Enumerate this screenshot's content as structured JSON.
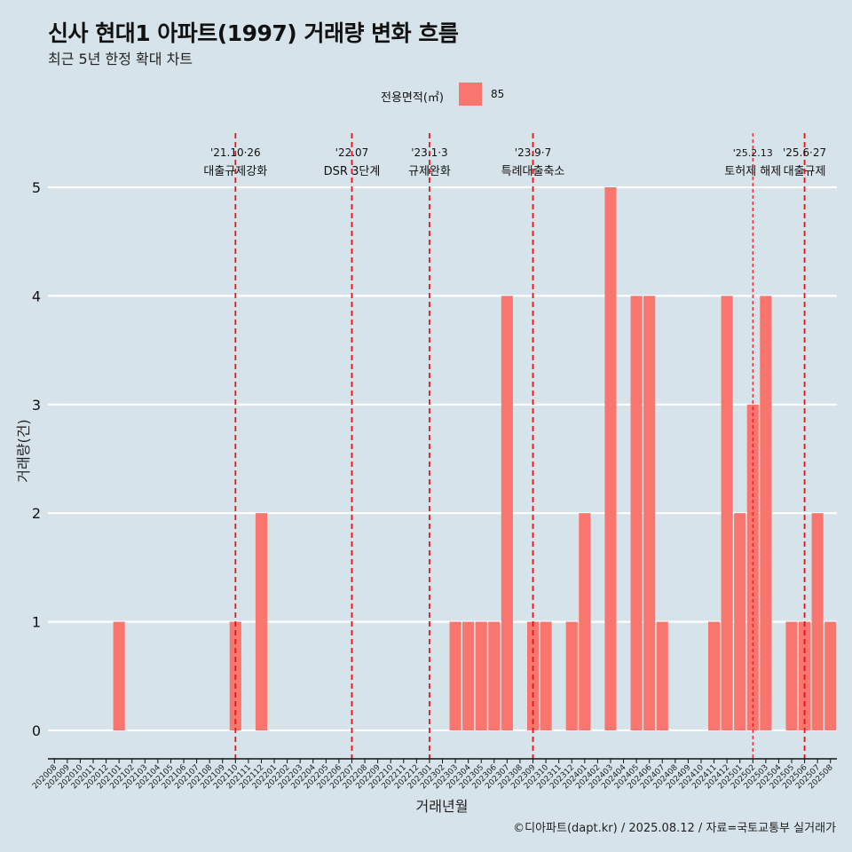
{
  "header": {
    "title": "신사 현대1 아파트(1997) 거래량 변화 흐름",
    "subtitle": "최근 5년 한정 확대 차트"
  },
  "legend": {
    "title": "전용면적(㎡)",
    "label": "85"
  },
  "caption": "©디아파트(dapt.kr) / 2025.08.12 / 자료=국토교통부 실거래가",
  "colors": {
    "background": "#d6e3ea",
    "bar": "#f8766d",
    "event_line": "#e8141a",
    "grid": "#ffffff"
  },
  "chart_data": {
    "type": "bar",
    "xlabel": "거래년월",
    "ylabel": "거래량(건)",
    "ylim": [
      0,
      5
    ],
    "yticks": [
      0,
      1,
      2,
      3,
      4,
      5
    ],
    "grid": "horizontal",
    "legend_position": "top",
    "categories": [
      "202008",
      "202009",
      "202010",
      "202011",
      "202012",
      "202101",
      "202102",
      "202103",
      "202104",
      "202105",
      "202106",
      "202107",
      "202108",
      "202109",
      "202110",
      "202111",
      "202112",
      "202201",
      "202202",
      "202203",
      "202204",
      "202205",
      "202206",
      "202207",
      "202208",
      "202209",
      "202210",
      "202211",
      "202212",
      "202301",
      "202302",
      "202303",
      "202304",
      "202305",
      "202306",
      "202307",
      "202308",
      "202309",
      "202310",
      "202311",
      "202312",
      "202401",
      "202402",
      "202403",
      "202404",
      "202405",
      "202406",
      "202407",
      "202408",
      "202409",
      "202410",
      "202411",
      "202412",
      "202501",
      "202502",
      "202503",
      "202504",
      "202505",
      "202506",
      "202507",
      "202508"
    ],
    "series": [
      {
        "name": "85",
        "values": [
          0,
          0,
          0,
          0,
          0,
          1,
          0,
          0,
          0,
          0,
          0,
          0,
          0,
          0,
          1,
          0,
          2,
          0,
          0,
          0,
          0,
          0,
          0,
          0,
          0,
          0,
          0,
          0,
          0,
          0,
          0,
          1,
          1,
          1,
          1,
          4,
          0,
          1,
          1,
          0,
          1,
          2,
          0,
          5,
          0,
          4,
          4,
          1,
          0,
          0,
          0,
          1,
          4,
          2,
          3,
          4,
          0,
          1,
          1,
          2,
          1
        ]
      }
    ],
    "annotations": [
      {
        "category": "202110",
        "date": "'21.10·26",
        "label": "대출규제강화",
        "style": "dashed"
      },
      {
        "category": "202207",
        "date": "'22.07",
        "label": "DSR 3단계",
        "style": "dashed"
      },
      {
        "category": "202301",
        "date": "'23.1·3",
        "label": "규제완화",
        "style": "dashed"
      },
      {
        "category": "202309",
        "date": "'23.9·7",
        "label": "특례대출축소",
        "style": "dashed"
      },
      {
        "category": "202502",
        "date": "'25.2.13",
        "label": "토허제 해제",
        "style": "thin-dashed"
      },
      {
        "category": "202506",
        "date": "'25.6·27",
        "label": "대출규제",
        "style": "dashed"
      }
    ]
  }
}
